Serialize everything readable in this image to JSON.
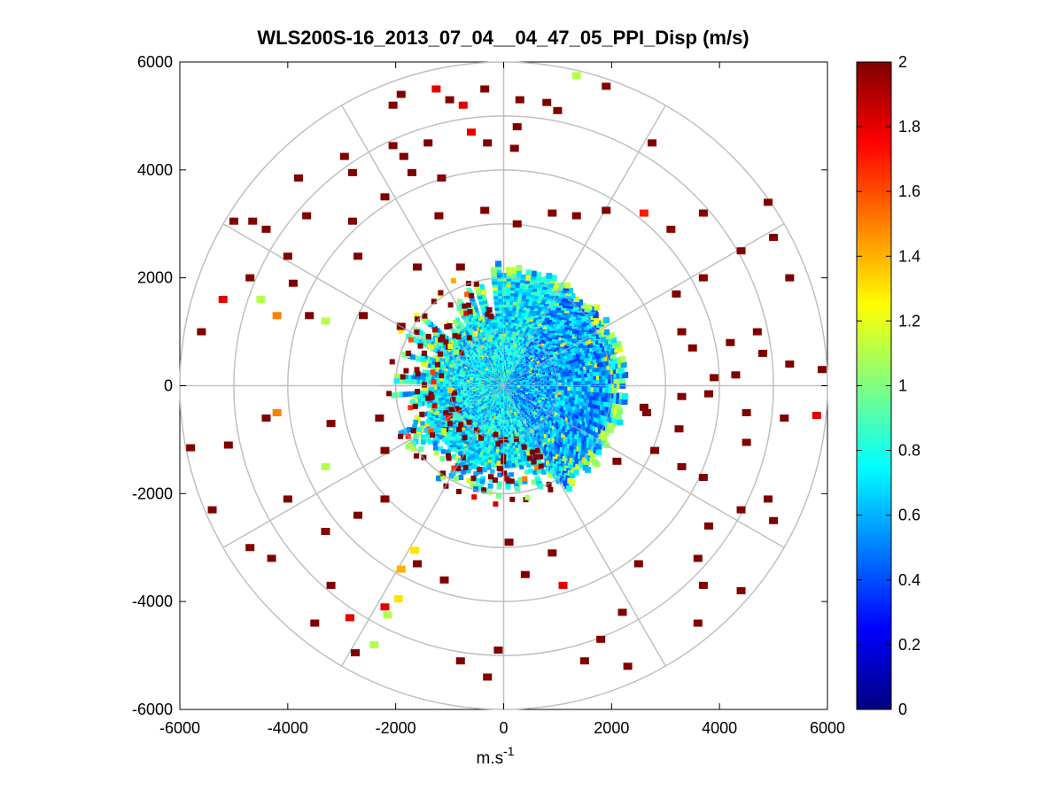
{
  "chart_data": {
    "type": "heatmap",
    "subtype": "polar-ppi-scan",
    "title": "WLS200S-16_2013_07_04__04_47_05_PPI_Disp (m/s)",
    "xlabel": "m.s",
    "xlabel_superscript": "-1",
    "ylabel": "",
    "xlim": [
      -6000,
      6000
    ],
    "ylim": [
      -6000,
      6000
    ],
    "x_ticks": [
      -6000,
      -4000,
      -2000,
      0,
      2000,
      4000,
      6000
    ],
    "y_ticks": [
      -6000,
      -4000,
      -2000,
      0,
      2000,
      4000,
      6000
    ],
    "x_tick_labels": [
      "-6000",
      "-4000",
      "-2000",
      "0",
      "2000",
      "4000",
      "6000"
    ],
    "y_tick_labels": [
      "-6000",
      "-4000",
      "-2000",
      "0",
      "2000",
      "4000",
      "6000"
    ],
    "polar_grid": {
      "ring_radii": [
        1000,
        2000,
        3000,
        4000,
        5000,
        6000
      ],
      "spoke_angles_deg": [
        0,
        30,
        60,
        90,
        120,
        150,
        180,
        210,
        240,
        270,
        300,
        330
      ]
    },
    "colorbar": {
      "colormap": "jet",
      "range": [
        0,
        2
      ],
      "ticks": [
        0,
        0.2,
        0.4,
        0.6,
        0.8,
        1,
        1.2,
        1.4,
        1.6,
        1.8,
        2
      ],
      "tick_labels": [
        "0",
        "0.2",
        "0.4",
        "0.6",
        "0.8",
        "1",
        "1.2",
        "1.4",
        "1.6",
        "1.8",
        "2"
      ]
    },
    "dense_region": {
      "description_values": "dense returns within ~2300 m range, values mostly 0.5-0.9 m/s",
      "max_range": 2300,
      "typical_value": 0.7
    },
    "sparse_cells": [
      {
        "x": -2050,
        "y": 5200,
        "v": 2
      },
      {
        "x": -1900,
        "y": 5400,
        "v": 2
      },
      {
        "x": -1250,
        "y": 5500,
        "v": 1.8
      },
      {
        "x": -1000,
        "y": 5300,
        "v": 2
      },
      {
        "x": -750,
        "y": 5200,
        "v": 1.8
      },
      {
        "x": -350,
        "y": 5500,
        "v": 2
      },
      {
        "x": 300,
        "y": 5300,
        "v": 2
      },
      {
        "x": 800,
        "y": 5250,
        "v": 2
      },
      {
        "x": 1350,
        "y": 5750,
        "v": 1.1
      },
      {
        "x": 1900,
        "y": 5550,
        "v": 2
      },
      {
        "x": 2750,
        "y": 4500,
        "v": 2
      },
      {
        "x": 1000,
        "y": 5100,
        "v": 2
      },
      {
        "x": 250,
        "y": 4800,
        "v": 2
      },
      {
        "x": 200,
        "y": 4400,
        "v": 2
      },
      {
        "x": -300,
        "y": 4500,
        "v": 2
      },
      {
        "x": -600,
        "y": 4700,
        "v": 1.8
      },
      {
        "x": -1400,
        "y": 4500,
        "v": 2
      },
      {
        "x": -2050,
        "y": 4450,
        "v": 2
      },
      {
        "x": -2950,
        "y": 4250,
        "v": 2
      },
      {
        "x": -1850,
        "y": 4250,
        "v": 2
      },
      {
        "x": -1700,
        "y": 3950,
        "v": 2
      },
      {
        "x": -2800,
        "y": 3950,
        "v": 2
      },
      {
        "x": -3800,
        "y": 3850,
        "v": 2
      },
      {
        "x": -5000,
        "y": 3050,
        "v": 2
      },
      {
        "x": -4650,
        "y": 3050,
        "v": 2
      },
      {
        "x": -4400,
        "y": 2900,
        "v": 2
      },
      {
        "x": -3650,
        "y": 3150,
        "v": 2
      },
      {
        "x": -2800,
        "y": 3050,
        "v": 2
      },
      {
        "x": -2200,
        "y": 3500,
        "v": 2
      },
      {
        "x": -1200,
        "y": 3150,
        "v": 2
      },
      {
        "x": -1150,
        "y": 3850,
        "v": 2
      },
      {
        "x": -350,
        "y": 3250,
        "v": 2
      },
      {
        "x": 250,
        "y": 3000,
        "v": 2
      },
      {
        "x": 900,
        "y": 3200,
        "v": 2
      },
      {
        "x": 1350,
        "y": 3150,
        "v": 2
      },
      {
        "x": 1900,
        "y": 3250,
        "v": 2
      },
      {
        "x": 2600,
        "y": 3200,
        "v": 1.7
      },
      {
        "x": 3100,
        "y": 2900,
        "v": 2
      },
      {
        "x": 3700,
        "y": 3200,
        "v": 2
      },
      {
        "x": 4900,
        "y": 3400,
        "v": 2
      },
      {
        "x": 5000,
        "y": 2750,
        "v": 2
      },
      {
        "x": 4400,
        "y": 2500,
        "v": 2
      },
      {
        "x": 3700,
        "y": 2000,
        "v": 2
      },
      {
        "x": 3200,
        "y": 1700,
        "v": 2
      },
      {
        "x": 3300,
        "y": 1000,
        "v": 2
      },
      {
        "x": 3500,
        "y": 700,
        "v": 2
      },
      {
        "x": 4200,
        "y": 800,
        "v": 2
      },
      {
        "x": 4800,
        "y": 600,
        "v": 2
      },
      {
        "x": 5300,
        "y": 400,
        "v": 2
      },
      {
        "x": 5900,
        "y": 300,
        "v": 2
      },
      {
        "x": 5300,
        "y": 2000,
        "v": 2
      },
      {
        "x": 4700,
        "y": 1000,
        "v": 2
      },
      {
        "x": 4300,
        "y": 200,
        "v": 2
      },
      {
        "x": 3900,
        "y": 150,
        "v": 2
      },
      {
        "x": 3800,
        "y": -150,
        "v": 2
      },
      {
        "x": 3300,
        "y": -200,
        "v": 2
      },
      {
        "x": 2600,
        "y": -400,
        "v": 2
      },
      {
        "x": 2650,
        "y": -500,
        "v": 2
      },
      {
        "x": 3250,
        "y": -800,
        "v": 2
      },
      {
        "x": 4500,
        "y": -500,
        "v": 2
      },
      {
        "x": 5200,
        "y": -600,
        "v": 2
      },
      {
        "x": 5800,
        "y": -550,
        "v": 1.8
      },
      {
        "x": 4500,
        "y": -1050,
        "v": 2
      },
      {
        "x": 3300,
        "y": -1500,
        "v": 2
      },
      {
        "x": 2800,
        "y": -1200,
        "v": 2
      },
      {
        "x": 2100,
        "y": -1400,
        "v": 2
      },
      {
        "x": 3700,
        "y": -1700,
        "v": 2
      },
      {
        "x": 4400,
        "y": -2300,
        "v": 2
      },
      {
        "x": 4900,
        "y": -2100,
        "v": 2
      },
      {
        "x": 5000,
        "y": -2500,
        "v": 2
      },
      {
        "x": 3800,
        "y": -2600,
        "v": 2
      },
      {
        "x": 3600,
        "y": -3200,
        "v": 2
      },
      {
        "x": 4400,
        "y": -3800,
        "v": 2
      },
      {
        "x": 3700,
        "y": -3700,
        "v": 2
      },
      {
        "x": 2500,
        "y": -3300,
        "v": 2
      },
      {
        "x": 2200,
        "y": -4200,
        "v": 2
      },
      {
        "x": 1800,
        "y": -4700,
        "v": 2
      },
      {
        "x": 1500,
        "y": -5100,
        "v": 2
      },
      {
        "x": 2300,
        "y": -5200,
        "v": 2
      },
      {
        "x": 3600,
        "y": -4400,
        "v": 2
      },
      {
        "x": 1100,
        "y": -3700,
        "v": 1.8
      },
      {
        "x": 900,
        "y": -3100,
        "v": 2
      },
      {
        "x": 400,
        "y": -3500,
        "v": 2
      },
      {
        "x": 100,
        "y": -2900,
        "v": 2
      },
      {
        "x": -100,
        "y": -4900,
        "v": 2
      },
      {
        "x": -300,
        "y": -5400,
        "v": 2
      },
      {
        "x": -800,
        "y": -5100,
        "v": 2
      },
      {
        "x": -1100,
        "y": -3600,
        "v": 2
      },
      {
        "x": -1600,
        "y": -3300,
        "v": 2
      },
      {
        "x": -1650,
        "y": -3050,
        "v": 1.3
      },
      {
        "x": -1900,
        "y": -3400,
        "v": 1.4
      },
      {
        "x": -1950,
        "y": -3950,
        "v": 1.3
      },
      {
        "x": -2200,
        "y": -4100,
        "v": 1.8
      },
      {
        "x": -2150,
        "y": -4250,
        "v": 1.1
      },
      {
        "x": -2400,
        "y": -4800,
        "v": 1.1
      },
      {
        "x": -2750,
        "y": -4950,
        "v": 2
      },
      {
        "x": -2850,
        "y": -4300,
        "v": 1.8
      },
      {
        "x": -3500,
        "y": -4400,
        "v": 2
      },
      {
        "x": -3200,
        "y": -3700,
        "v": 2
      },
      {
        "x": -4300,
        "y": -3200,
        "v": 2
      },
      {
        "x": -4700,
        "y": -3000,
        "v": 2
      },
      {
        "x": -3300,
        "y": -2700,
        "v": 2
      },
      {
        "x": -2700,
        "y": -2400,
        "v": 2
      },
      {
        "x": -2200,
        "y": -2100,
        "v": 2
      },
      {
        "x": -4000,
        "y": -2100,
        "v": 2
      },
      {
        "x": -5400,
        "y": -2300,
        "v": 2
      },
      {
        "x": -5100,
        "y": -1100,
        "v": 2
      },
      {
        "x": -5800,
        "y": -1150,
        "v": 2
      },
      {
        "x": -4400,
        "y": -600,
        "v": 2
      },
      {
        "x": -4200,
        "y": -500,
        "v": 1.5
      },
      {
        "x": -3300,
        "y": -1500,
        "v": 1.1
      },
      {
        "x": -3200,
        "y": -700,
        "v": 2
      },
      {
        "x": -2300,
        "y": -600,
        "v": 2
      },
      {
        "x": -2200,
        "y": -1200,
        "v": 2
      },
      {
        "x": -3600,
        "y": 1300,
        "v": 2
      },
      {
        "x": -3300,
        "y": 1200,
        "v": 1.1
      },
      {
        "x": -4200,
        "y": 1300,
        "v": 1.5
      },
      {
        "x": -4500,
        "y": 1600,
        "v": 1.1
      },
      {
        "x": -3900,
        "y": 1900,
        "v": 2
      },
      {
        "x": -4700,
        "y": 2000,
        "v": 2
      },
      {
        "x": -5200,
        "y": 1600,
        "v": 1.8
      },
      {
        "x": -5600,
        "y": 1000,
        "v": 2
      },
      {
        "x": -4000,
        "y": 2400,
        "v": 2
      },
      {
        "x": -2700,
        "y": 2400,
        "v": 2
      },
      {
        "x": -1600,
        "y": 2200,
        "v": 2
      },
      {
        "x": -800,
        "y": 2200,
        "v": 2
      },
      {
        "x": -2600,
        "y": 1300,
        "v": 2
      },
      {
        "x": -1900,
        "y": 1100,
        "v": 2
      }
    ]
  }
}
